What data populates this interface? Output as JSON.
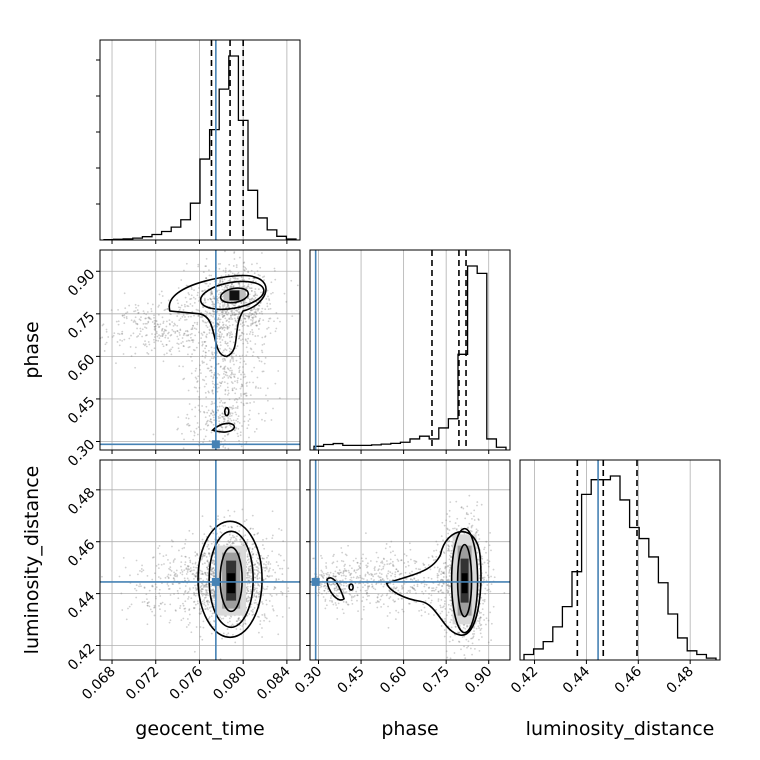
{
  "chart_data": {
    "type": "corner",
    "parameters": [
      "geocent_time",
      "phase",
      "luminosity_distance"
    ],
    "truths": {
      "geocent_time": 0.0775,
      "phase": 0.29,
      "luminosity_distance": 0.4445
    },
    "truth_color": "#4682b4",
    "quantiles": {
      "geocent_time": [
        0.0771,
        0.0788,
        0.08
      ],
      "phase": [
        0.7,
        0.795,
        0.82
      ],
      "luminosity_distance": [
        0.4365,
        0.4465,
        0.4595
      ]
    },
    "ranges": {
      "geocent_time": [
        0.0669,
        0.0852
      ],
      "phase": [
        0.27,
        0.975
      ],
      "luminosity_distance": [
        0.4144,
        0.4915
      ]
    },
    "ticks": {
      "geocent_time": {
        "values": [
          0.068,
          0.072,
          0.076,
          0.08,
          0.084
        ],
        "labels": [
          "0.068",
          "0.072",
          "0.076",
          "0.080",
          "0.084"
        ]
      },
      "phase": {
        "values": [
          0.3,
          0.45,
          0.6,
          0.75,
          0.9
        ],
        "labels": [
          "0.30",
          "0.45",
          "0.60",
          "0.75",
          "0.90"
        ]
      },
      "luminosity_distance": {
        "values": [
          0.42,
          0.44,
          0.46,
          0.48
        ],
        "labels": [
          "0.42",
          "0.44",
          "0.46",
          "0.48"
        ]
      }
    },
    "histograms": {
      "geocent_time": [
        0.002,
        0.004,
        0.006,
        0.01,
        0.018,
        0.03,
        0.046,
        0.07,
        0.11,
        0.2,
        0.44,
        0.6,
        0.82,
        1.0,
        0.65,
        0.27,
        0.12,
        0.055,
        0.02,
        0.005
      ],
      "phase": [
        0.02,
        0.03,
        0.035,
        0.025,
        0.025,
        0.025,
        0.028,
        0.032,
        0.036,
        0.042,
        0.06,
        0.075,
        0.06,
        0.12,
        0.17,
        0.52,
        1.0,
        0.96,
        0.06,
        0.015
      ],
      "luminosity_distance": [
        0.03,
        0.06,
        0.1,
        0.18,
        0.29,
        0.48,
        0.9,
        0.98,
        0.98,
        1.0,
        0.87,
        0.72,
        0.66,
        0.56,
        0.42,
        0.25,
        0.12,
        0.05,
        0.03,
        0.01
      ]
    },
    "grid": true
  }
}
